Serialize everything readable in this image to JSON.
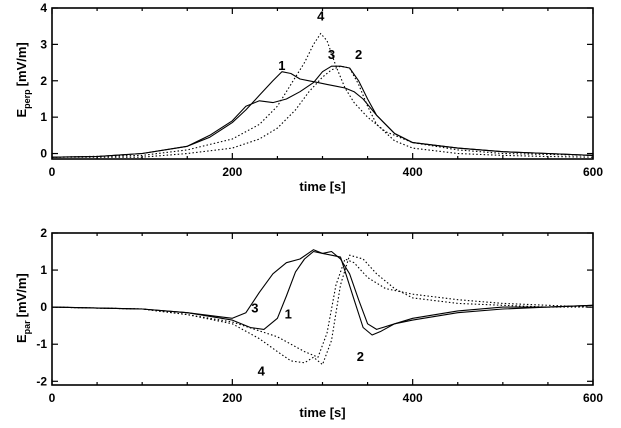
{
  "chart_data": [
    {
      "type": "line",
      "xlabel": "time [s]",
      "ylabel_main": "E",
      "ylabel_sub": "perp",
      "ylabel_unit": "[mV/m]",
      "xlim": [
        0,
        600
      ],
      "ylim": [
        -0.15,
        4
      ],
      "xticks": [
        0,
        200,
        400,
        600
      ],
      "yticks": [
        0,
        1,
        2,
        3,
        4
      ],
      "grid": false,
      "series": [
        {
          "name": "1",
          "dash": "solid",
          "label_at": [
            255,
            2.3
          ],
          "x": [
            0,
            50,
            100,
            150,
            175,
            200,
            215,
            230,
            245,
            255,
            265,
            275,
            285,
            295,
            305,
            315,
            325,
            335,
            345,
            360,
            380,
            400,
            450,
            500,
            550,
            600
          ],
          "y": [
            -0.1,
            -0.08,
            0,
            0.2,
            0.45,
            0.85,
            1.2,
            1.6,
            2.0,
            2.25,
            2.2,
            2.05,
            2.0,
            1.95,
            1.9,
            1.85,
            1.8,
            1.7,
            1.5,
            1.05,
            0.55,
            0.3,
            0.15,
            0.05,
            0,
            -0.05
          ]
        },
        {
          "name": "2",
          "dash": "dotted",
          "label_at": [
            340,
            2.6
          ],
          "x": [
            0,
            100,
            150,
            200,
            230,
            250,
            270,
            285,
            300,
            310,
            320,
            330,
            340,
            350,
            360,
            380,
            400,
            450,
            500,
            550,
            600
          ],
          "y": [
            -0.1,
            -0.1,
            0,
            0.15,
            0.4,
            0.7,
            1.2,
            1.7,
            2.1,
            2.3,
            2.4,
            2.35,
            1.9,
            1.3,
            0.8,
            0.35,
            0.15,
            0,
            -0.05,
            -0.08,
            -0.1
          ]
        },
        {
          "name": "3",
          "dash": "solid",
          "label_at": [
            310,
            2.6
          ],
          "x": [
            0,
            50,
            100,
            150,
            175,
            200,
            215,
            230,
            245,
            260,
            275,
            290,
            300,
            310,
            320,
            330,
            340,
            350,
            360,
            380,
            400,
            450,
            500,
            550,
            600
          ],
          "y": [
            -0.1,
            -0.08,
            0,
            0.2,
            0.5,
            0.9,
            1.3,
            1.45,
            1.4,
            1.5,
            1.7,
            1.95,
            2.25,
            2.4,
            2.4,
            2.35,
            2.0,
            1.5,
            1.05,
            0.55,
            0.3,
            0.15,
            0.05,
            0,
            -0.05
          ]
        },
        {
          "name": "4",
          "dash": "dotted",
          "label_at": [
            298,
            3.65
          ],
          "x": [
            0,
            100,
            150,
            200,
            230,
            250,
            265,
            280,
            290,
            298,
            305,
            315,
            325,
            335,
            350,
            370,
            400,
            450,
            500,
            600
          ],
          "y": [
            -0.1,
            -0.05,
            0.1,
            0.4,
            0.8,
            1.3,
            1.9,
            2.5,
            3.0,
            3.3,
            3.1,
            2.4,
            1.8,
            1.4,
            1.0,
            0.6,
            0.3,
            0.1,
            0,
            -0.05
          ]
        }
      ]
    },
    {
      "type": "line",
      "xlabel": "time [s]",
      "ylabel_main": "E",
      "ylabel_sub": "par",
      "ylabel_unit": "[mV/m]",
      "xlim": [
        0,
        600
      ],
      "ylim": [
        -2.1,
        2
      ],
      "xticks": [
        0,
        200,
        400,
        600
      ],
      "yticks": [
        -2,
        -1,
        0,
        1,
        2
      ],
      "grid": false,
      "series": [
        {
          "name": "1",
          "dash": "solid",
          "label_at": [
            262,
            -0.3
          ],
          "x": [
            0,
            100,
            150,
            200,
            220,
            235,
            250,
            260,
            270,
            280,
            290,
            300,
            310,
            320,
            335,
            345,
            355,
            365,
            380,
            400,
            450,
            500,
            550,
            600
          ],
          "y": [
            0,
            -0.05,
            -0.15,
            -0.35,
            -0.55,
            -0.6,
            -0.3,
            0.3,
            0.95,
            1.3,
            1.5,
            1.45,
            1.4,
            1.35,
            0.2,
            -0.55,
            -0.75,
            -0.65,
            -0.45,
            -0.35,
            -0.15,
            -0.05,
            0,
            0.05
          ]
        },
        {
          "name": "2",
          "dash": "dotted",
          "label_at": [
            342,
            -1.45
          ],
          "x": [
            0,
            100,
            150,
            200,
            250,
            280,
            295,
            305,
            315,
            325,
            335,
            350,
            370,
            400,
            450,
            500,
            550,
            600
          ],
          "y": [
            0,
            -0.05,
            -0.2,
            -0.4,
            -0.8,
            -1.2,
            -1.35,
            -0.7,
            0.6,
            1.3,
            1.2,
            0.8,
            0.5,
            0.35,
            0.2,
            0.1,
            0.05,
            0
          ]
        },
        {
          "name": "3",
          "dash": "solid",
          "label_at": [
            225,
            -0.15
          ],
          "x": [
            0,
            100,
            150,
            200,
            215,
            230,
            245,
            260,
            275,
            290,
            300,
            310,
            320,
            330,
            340,
            350,
            360,
            380,
            400,
            450,
            500,
            550,
            600
          ],
          "y": [
            0,
            -0.05,
            -0.15,
            -0.3,
            -0.15,
            0.4,
            0.9,
            1.2,
            1.3,
            1.55,
            1.45,
            1.5,
            1.3,
            0.9,
            0.2,
            -0.45,
            -0.6,
            -0.45,
            -0.3,
            -0.1,
            0,
            0,
            0.05
          ]
        },
        {
          "name": "4",
          "dash": "dotted",
          "label_at": [
            232,
            -1.85
          ],
          "x": [
            0,
            100,
            150,
            200,
            230,
            250,
            265,
            280,
            290,
            300,
            310,
            320,
            330,
            345,
            360,
            380,
            400,
            450,
            500,
            550,
            600
          ],
          "y": [
            0,
            -0.05,
            -0.2,
            -0.45,
            -0.85,
            -1.2,
            -1.45,
            -1.5,
            -1.35,
            -1.55,
            -0.9,
            0.6,
            1.4,
            1.3,
            0.9,
            0.5,
            0.25,
            0.1,
            0.05,
            0,
            0
          ]
        }
      ]
    }
  ]
}
